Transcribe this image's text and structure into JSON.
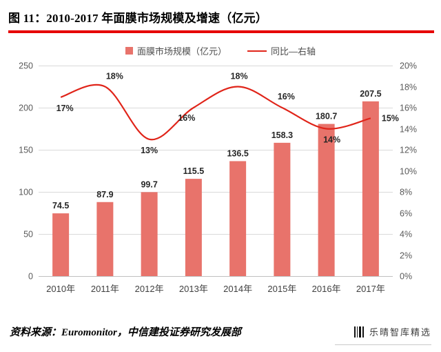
{
  "header": {
    "title": "图 11：2010-2017 年面膜市场规模及增速（亿元）"
  },
  "legend": {
    "bars_label": "面膜市场规模（亿元）",
    "line_label": "同比—右轴"
  },
  "chart_data": {
    "type": "bar",
    "title": "2010-2017 年面膜市场规模及增速（亿元）",
    "categories": [
      "2010年",
      "2011年",
      "2012年",
      "2013年",
      "2014年",
      "2015年",
      "2016年",
      "2017年"
    ],
    "series": [
      {
        "name": "面膜市场规模（亿元）",
        "type": "bar",
        "axis": "left",
        "values": [
          74.5,
          87.9,
          99.7,
          115.5,
          136.5,
          158.3,
          180.7,
          207.5
        ]
      },
      {
        "name": "同比—右轴",
        "type": "line",
        "axis": "right",
        "values": [
          17,
          18,
          13,
          16,
          18,
          16,
          14,
          15
        ]
      }
    ],
    "left_axis": {
      "min": 0,
      "max": 250,
      "step": 50,
      "ticks": [
        "0",
        "50",
        "100",
        "150",
        "200",
        "250"
      ]
    },
    "right_axis": {
      "min": 0,
      "max": 20,
      "step": 2,
      "ticks": [
        "0%",
        "2%",
        "4%",
        "6%",
        "8%",
        "10%",
        "12%",
        "14%",
        "16%",
        "18%",
        "20%"
      ]
    },
    "grid": true,
    "legend_position": "top-center",
    "colors": {
      "bar": "#e8736b",
      "line": "#e02419",
      "grid": "#d9d9d9",
      "baseline": "#bfbfbf",
      "axis_text": "#595959",
      "category_text": "#404040",
      "value_text": "#262626",
      "accent_rule": "#e60000"
    }
  },
  "footer": {
    "source": "资料来源：Euromonitor，中信建投证券研究发展部",
    "watermark": "乐晴智库精选"
  }
}
